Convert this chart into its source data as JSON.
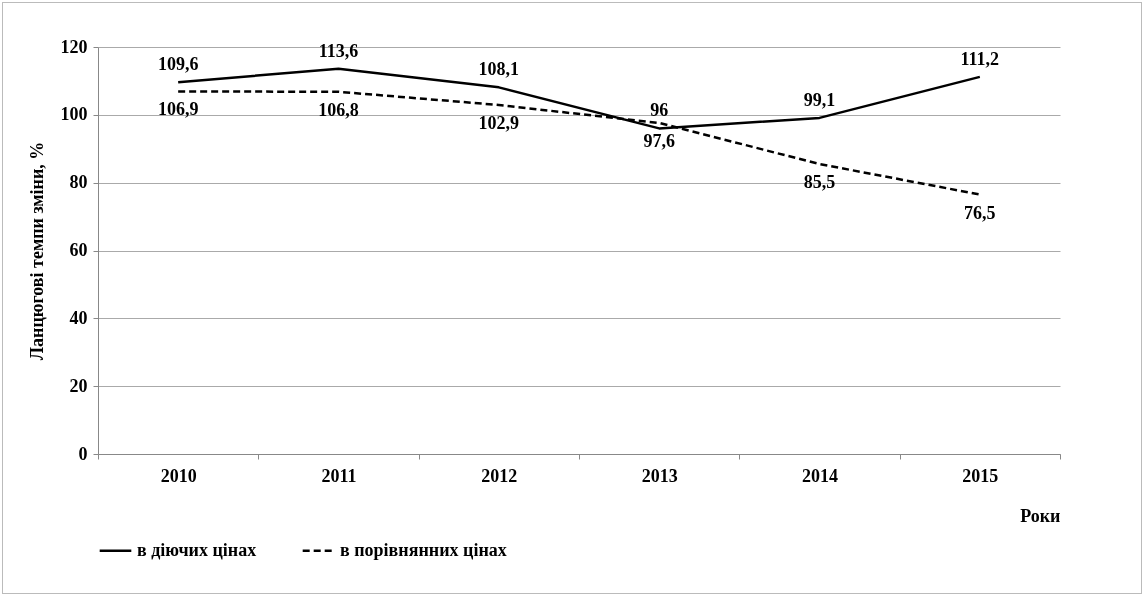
{
  "chart_data": {
    "type": "line",
    "ylabel": "Ланцюгові темпи зміни, %",
    "xlabel": "Роки",
    "categories": [
      "2010",
      "2011",
      "2012",
      "2013",
      "2014",
      "2015"
    ],
    "series": [
      {
        "name": "в діючих цінах",
        "color": "#000000",
        "line_style": "solid",
        "values": [
          109.6,
          113.6,
          108.1,
          96,
          99.1,
          111.2
        ],
        "value_labels": [
          "109,6",
          "113,6",
          "108,1",
          "96",
          "99,1",
          "111,2"
        ]
      },
      {
        "name": "в порівнянних цінах",
        "color": "#000000",
        "line_style": "dashed",
        "values": [
          106.9,
          106.8,
          102.9,
          97.6,
          85.5,
          76.5
        ],
        "value_labels": [
          "106,9",
          "106,8",
          "102,9",
          "97,6",
          "85,5",
          "76,5"
        ]
      }
    ],
    "ylim": [
      0,
      120
    ],
    "yticks": [
      0,
      20,
      40,
      60,
      80,
      100,
      120
    ],
    "grid": "y",
    "legend": "bottom",
    "marker": "none"
  }
}
